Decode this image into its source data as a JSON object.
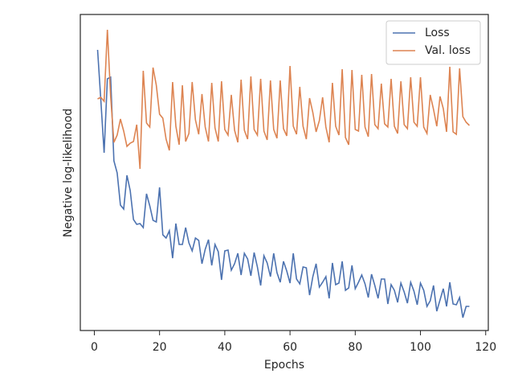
{
  "chart_data": {
    "type": "line",
    "xlabel": "Epochs",
    "ylabel": "Negative log-likelihood",
    "x": [
      1,
      2,
      3,
      4,
      5,
      6,
      7,
      8,
      9,
      10,
      11,
      12,
      13,
      14,
      15,
      16,
      17,
      18,
      19,
      20,
      21,
      22,
      23,
      24,
      25,
      26,
      27,
      28,
      29,
      30,
      31,
      32,
      33,
      34,
      35,
      36,
      37,
      38,
      39,
      40,
      41,
      42,
      43,
      44,
      45,
      46,
      47,
      48,
      49,
      50,
      51,
      52,
      53,
      54,
      55,
      56,
      57,
      58,
      59,
      60,
      61,
      62,
      63,
      64,
      65,
      66,
      67,
      68,
      69,
      70,
      71,
      72,
      73,
      74,
      75,
      76,
      77,
      78,
      79,
      80,
      81,
      82,
      83,
      84,
      85,
      86,
      87,
      88,
      89,
      90,
      91,
      92,
      93,
      94,
      95,
      96,
      97,
      98,
      99,
      100,
      101,
      102,
      103,
      104,
      105,
      106,
      107,
      108,
      109,
      110,
      111,
      112,
      113,
      114,
      115
    ],
    "series": [
      {
        "name": "Loss",
        "color": "#4c72b0",
        "values": [
          349,
          286,
          221,
          313,
          315,
          211,
          196,
          156,
          151,
          193,
          174,
          138,
          132,
          133,
          128,
          170,
          155,
          137,
          135,
          178,
          119,
          115,
          124,
          90,
          133,
          107,
          107,
          128,
          109,
          99,
          115,
          112,
          83,
          101,
          113,
          81,
          107,
          98,
          63,
          99,
          100,
          75,
          83,
          96,
          69,
          96,
          89,
          68,
          97,
          79,
          56,
          93,
          84,
          67,
          96,
          72,
          60,
          86,
          74,
          59,
          96,
          64,
          58,
          79,
          78,
          44,
          67,
          83,
          54,
          60,
          67,
          40,
          84,
          57,
          59,
          86,
          50,
          53,
          81,
          52,
          60,
          69,
          58,
          41,
          70,
          56,
          40,
          64,
          64,
          33,
          57,
          50,
          35,
          59,
          48,
          34,
          60,
          49,
          32,
          59,
          50,
          30,
          37,
          56,
          24,
          38,
          52,
          30,
          60,
          33,
          32,
          41,
          16,
          30,
          30
        ]
      },
      {
        "name": "Val. loss",
        "color": "#dd8452",
        "values": [
          288,
          290,
          285,
          374,
          291,
          234,
          243,
          263,
          248,
          229,
          233,
          235,
          256,
          201,
          323,
          258,
          253,
          327,
          305,
          269,
          264,
          238,
          224,
          309,
          254,
          231,
          305,
          235,
          245,
          309,
          262,
          244,
          294,
          253,
          235,
          308,
          252,
          235,
          310,
          250,
          243,
          293,
          249,
          234,
          312,
          249,
          238,
          316,
          250,
          243,
          313,
          248,
          237,
          311,
          250,
          239,
          311,
          251,
          242,
          329,
          254,
          244,
          303,
          254,
          238,
          289,
          271,
          247,
          261,
          290,
          253,
          234,
          308,
          254,
          243,
          325,
          240,
          231,
          324,
          250,
          248,
          318,
          253,
          241,
          319,
          256,
          251,
          307,
          257,
          253,
          313,
          254,
          245,
          310,
          256,
          251,
          315,
          259,
          254,
          315,
          253,
          245,
          293,
          275,
          254,
          291,
          276,
          247,
          328,
          247,
          244,
          326,
          266,
          259,
          255
        ]
      }
    ],
    "xlim": [
      -4.3,
      120.8
    ],
    "ylim": [
      0,
      393
    ],
    "xticks": [
      0,
      20,
      40,
      60,
      80,
      100,
      120
    ],
    "legend": "upper right"
  }
}
